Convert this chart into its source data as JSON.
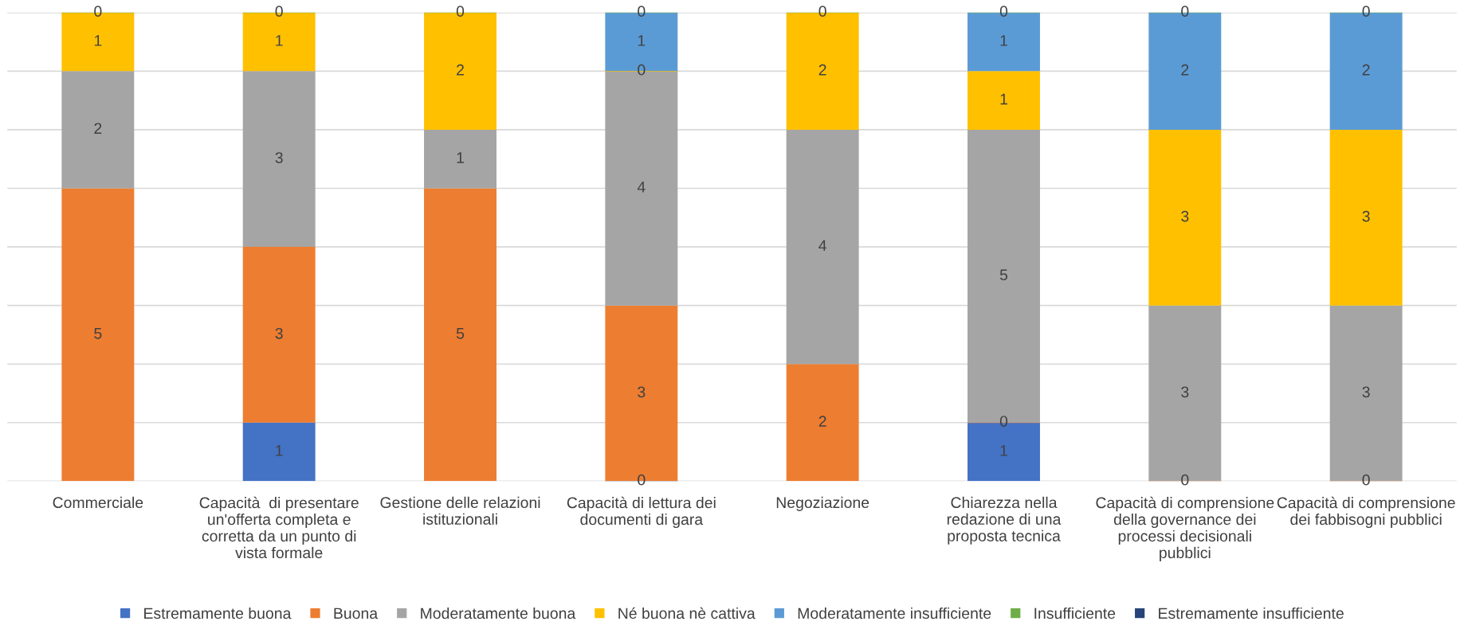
{
  "chart_data": {
    "type": "bar",
    "stacked": true,
    "grid": "y",
    "legend": "bottom",
    "tick_labels": "x",
    "categories": [
      "Commerciale",
      "Capacità  di presentare un'offerta completa e corretta da un punto di vista formale",
      "Gestione delle relazioni istituzionali",
      "Capacità di lettura dei documenti di gara",
      "Negoziazione",
      "Chiarezza nella redazione di una proposta tecnica",
      "Capacità di comprensione della governance dei processi decisionali pubblici",
      "Capacità di comprensione dei fabbisogni pubblici"
    ],
    "ylim": [
      0,
      8
    ],
    "yticks": [
      {
        "value": 0,
        "label": null
      },
      {
        "value": 1,
        "label": null
      },
      {
        "value": 2,
        "label": null
      },
      {
        "value": 3,
        "label": null
      },
      {
        "value": 4,
        "label": null
      },
      {
        "value": 5,
        "label": null
      },
      {
        "value": 6,
        "label": null
      },
      {
        "value": 7,
        "label": null
      },
      {
        "value": 8,
        "label": null
      }
    ],
    "series": [
      {
        "name": "Estremamente buona",
        "color": "#4472c4",
        "values": [
          null,
          1,
          null,
          0,
          null,
          1,
          null,
          null
        ],
        "value_labels": [
          null,
          "1",
          null,
          "0",
          null,
          "1",
          null,
          null
        ]
      },
      {
        "name": "Buona",
        "color": "#ed7d31",
        "values": [
          5,
          3,
          5,
          3,
          2,
          0,
          0,
          0
        ],
        "value_labels": [
          "5",
          "3",
          "5",
          "3",
          "2",
          "0",
          "0",
          "0"
        ]
      },
      {
        "name": "Moderatamente buona",
        "color": "#a5a5a5",
        "values": [
          2,
          3,
          1,
          4,
          4,
          5,
          3,
          3
        ],
        "value_labels": [
          "2",
          "3",
          "1",
          "4",
          "4",
          "5",
          "3",
          "3"
        ]
      },
      {
        "name": "Né buona nè cattiva",
        "color": "#ffc000",
        "values": [
          1,
          1,
          2,
          0,
          2,
          1,
          3,
          3
        ],
        "value_labels": [
          "1",
          "1",
          "2",
          "0",
          "2",
          "1",
          "3",
          "3"
        ]
      },
      {
        "name": "Moderatamente insufficiente",
        "color": "#5b9bd5",
        "values": [
          null,
          null,
          null,
          1,
          null,
          1,
          2,
          2
        ],
        "value_labels": [
          null,
          null,
          null,
          "1",
          null,
          "1",
          "2",
          "2"
        ]
      },
      {
        "name": "Insufficiente",
        "color": "#70ad47",
        "values": [
          0,
          0,
          0,
          0,
          0,
          0,
          0,
          0
        ],
        "value_labels": [
          "0",
          "0",
          "0",
          "0",
          "0",
          "0",
          "0",
          "0"
        ]
      },
      {
        "name": "Estremamente insufficiente",
        "color": "#264478",
        "values": [
          null,
          null,
          null,
          null,
          null,
          null,
          null,
          null
        ]
      }
    ]
  }
}
